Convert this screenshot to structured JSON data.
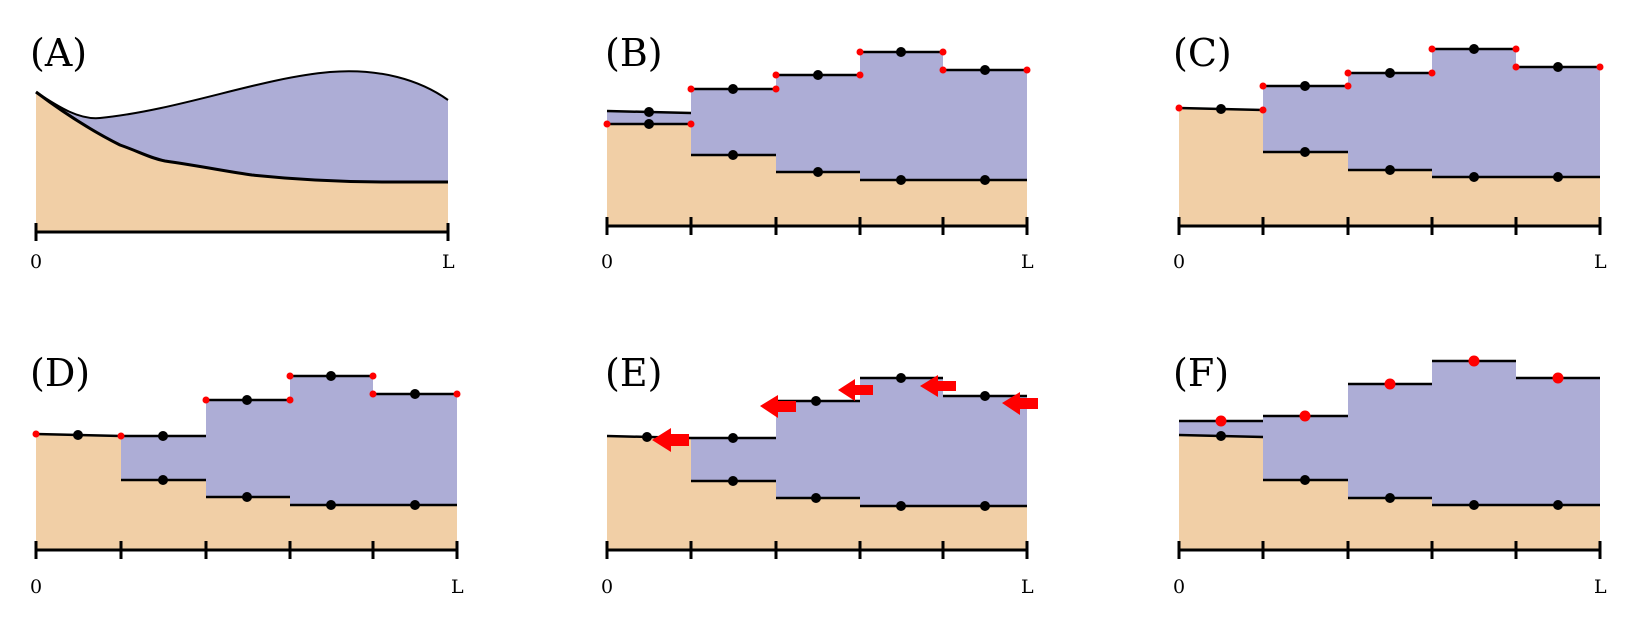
{
  "colors": {
    "lower_fill": "#f1cfa6",
    "upper_fill": "#adadd6",
    "line": "#000000",
    "cell_point": "#000000",
    "interface_point": "#ff0000",
    "arrow": "#ff0000"
  },
  "axis": {
    "start_label": "0",
    "end_label": "L"
  },
  "panels": [
    {
      "id": "A",
      "label": "(A)",
      "kind": "continuous"
    },
    {
      "id": "B",
      "label": "(B)",
      "kind": "cells",
      "markers": "red-dots"
    },
    {
      "id": "C",
      "label": "(C)",
      "kind": "cells",
      "markers": "red-dots"
    },
    {
      "id": "D",
      "label": "(D)",
      "kind": "cells",
      "markers": "red-dots"
    },
    {
      "id": "E",
      "label": "(E)",
      "kind": "cells",
      "markers": "arrows"
    },
    {
      "id": "F",
      "label": "(F)",
      "kind": "cells",
      "markers": "red-top-points"
    }
  ]
}
